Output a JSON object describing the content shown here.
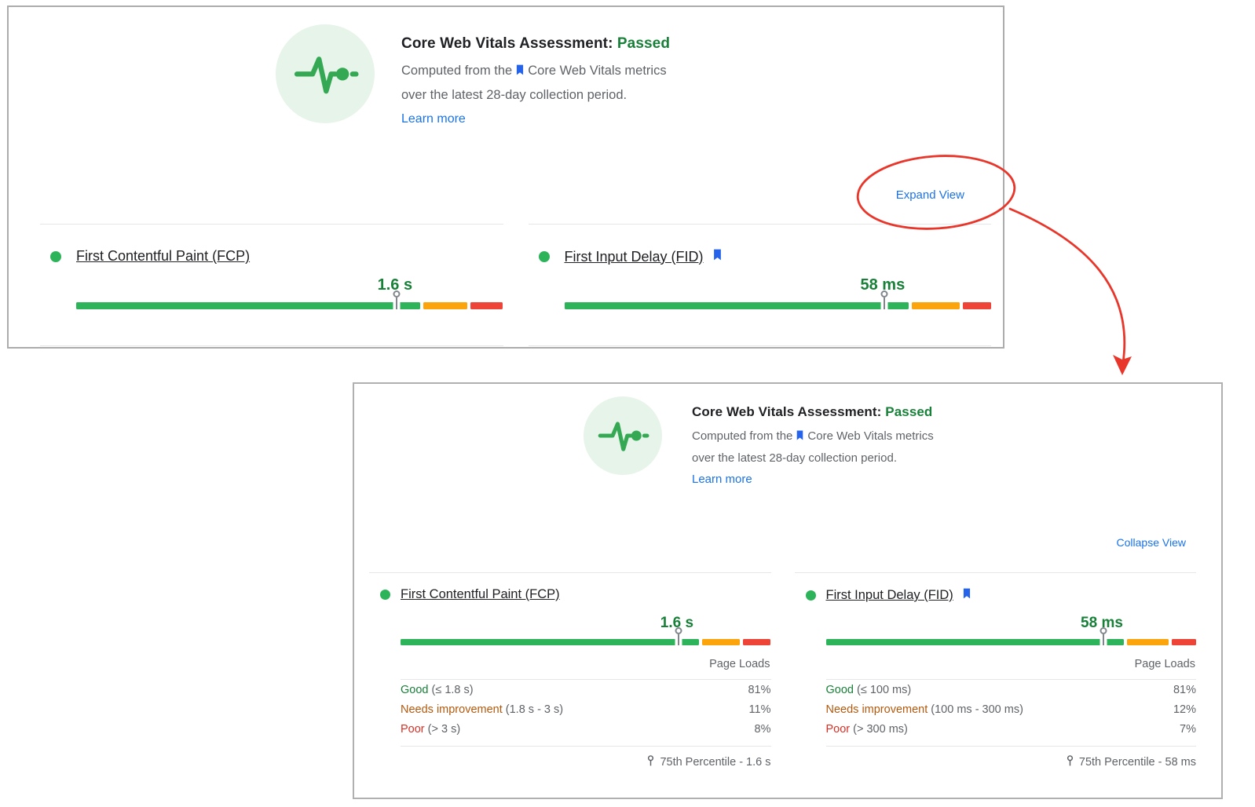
{
  "colors": {
    "link_blue": "#1a73e8",
    "pass_green": "#188038",
    "bar_good_green": "#2db45a",
    "bar_needs_orange": "#fba40c",
    "bar_poor_red": "#ee4337",
    "needs_text": "#b3590e",
    "poor_text": "#d93025",
    "annotation_red": "#e8362b",
    "icon_circle_bg": "#e6f4ea",
    "icon_pulse_green": "#34a853",
    "bookmark_blue": "#2563eb"
  },
  "header": {
    "title": "Core Web Vitals Assessment:",
    "status": "Passed",
    "computed_prefix": "Computed from the",
    "computed_suffix": "Core Web Vitals metrics",
    "period_line": "over the latest 28-day collection period.",
    "learn_more": "Learn more"
  },
  "collapsed": {
    "toggle": "Expand View"
  },
  "expanded": {
    "toggle": "Collapse View",
    "page_loads": "Page Loads"
  },
  "metrics": [
    {
      "name": "First Contentful Paint (FCP)",
      "bookmark": false,
      "value": "1.6 s",
      "marker_pct": 75,
      "rows": {
        "good": {
          "label": "Good",
          "range": "(≤ 1.8 s)",
          "pct": "81%",
          "value": 81
        },
        "needs": {
          "label": "Needs improvement",
          "range": "(1.8 s - 3 s)",
          "pct": "11%",
          "value": 11
        },
        "poor": {
          "label": "Poor",
          "range": "(> 3 s)",
          "pct": "8%",
          "value": 8
        }
      },
      "percentile": "75th Percentile - 1.6 s"
    },
    {
      "name": "First Input Delay (FID)",
      "bookmark": true,
      "value": "58 ms",
      "marker_pct": 75,
      "rows": {
        "good": {
          "label": "Good",
          "range": "(≤ 100 ms)",
          "pct": "81%",
          "value": 81
        },
        "needs": {
          "label": "Needs improvement",
          "range": "(100 ms - 300 ms)",
          "pct": "12%",
          "value": 12
        },
        "poor": {
          "label": "Poor",
          "range": "(> 300 ms)",
          "pct": "7%",
          "value": 7
        }
      },
      "percentile": "75th Percentile - 58 ms"
    }
  ]
}
